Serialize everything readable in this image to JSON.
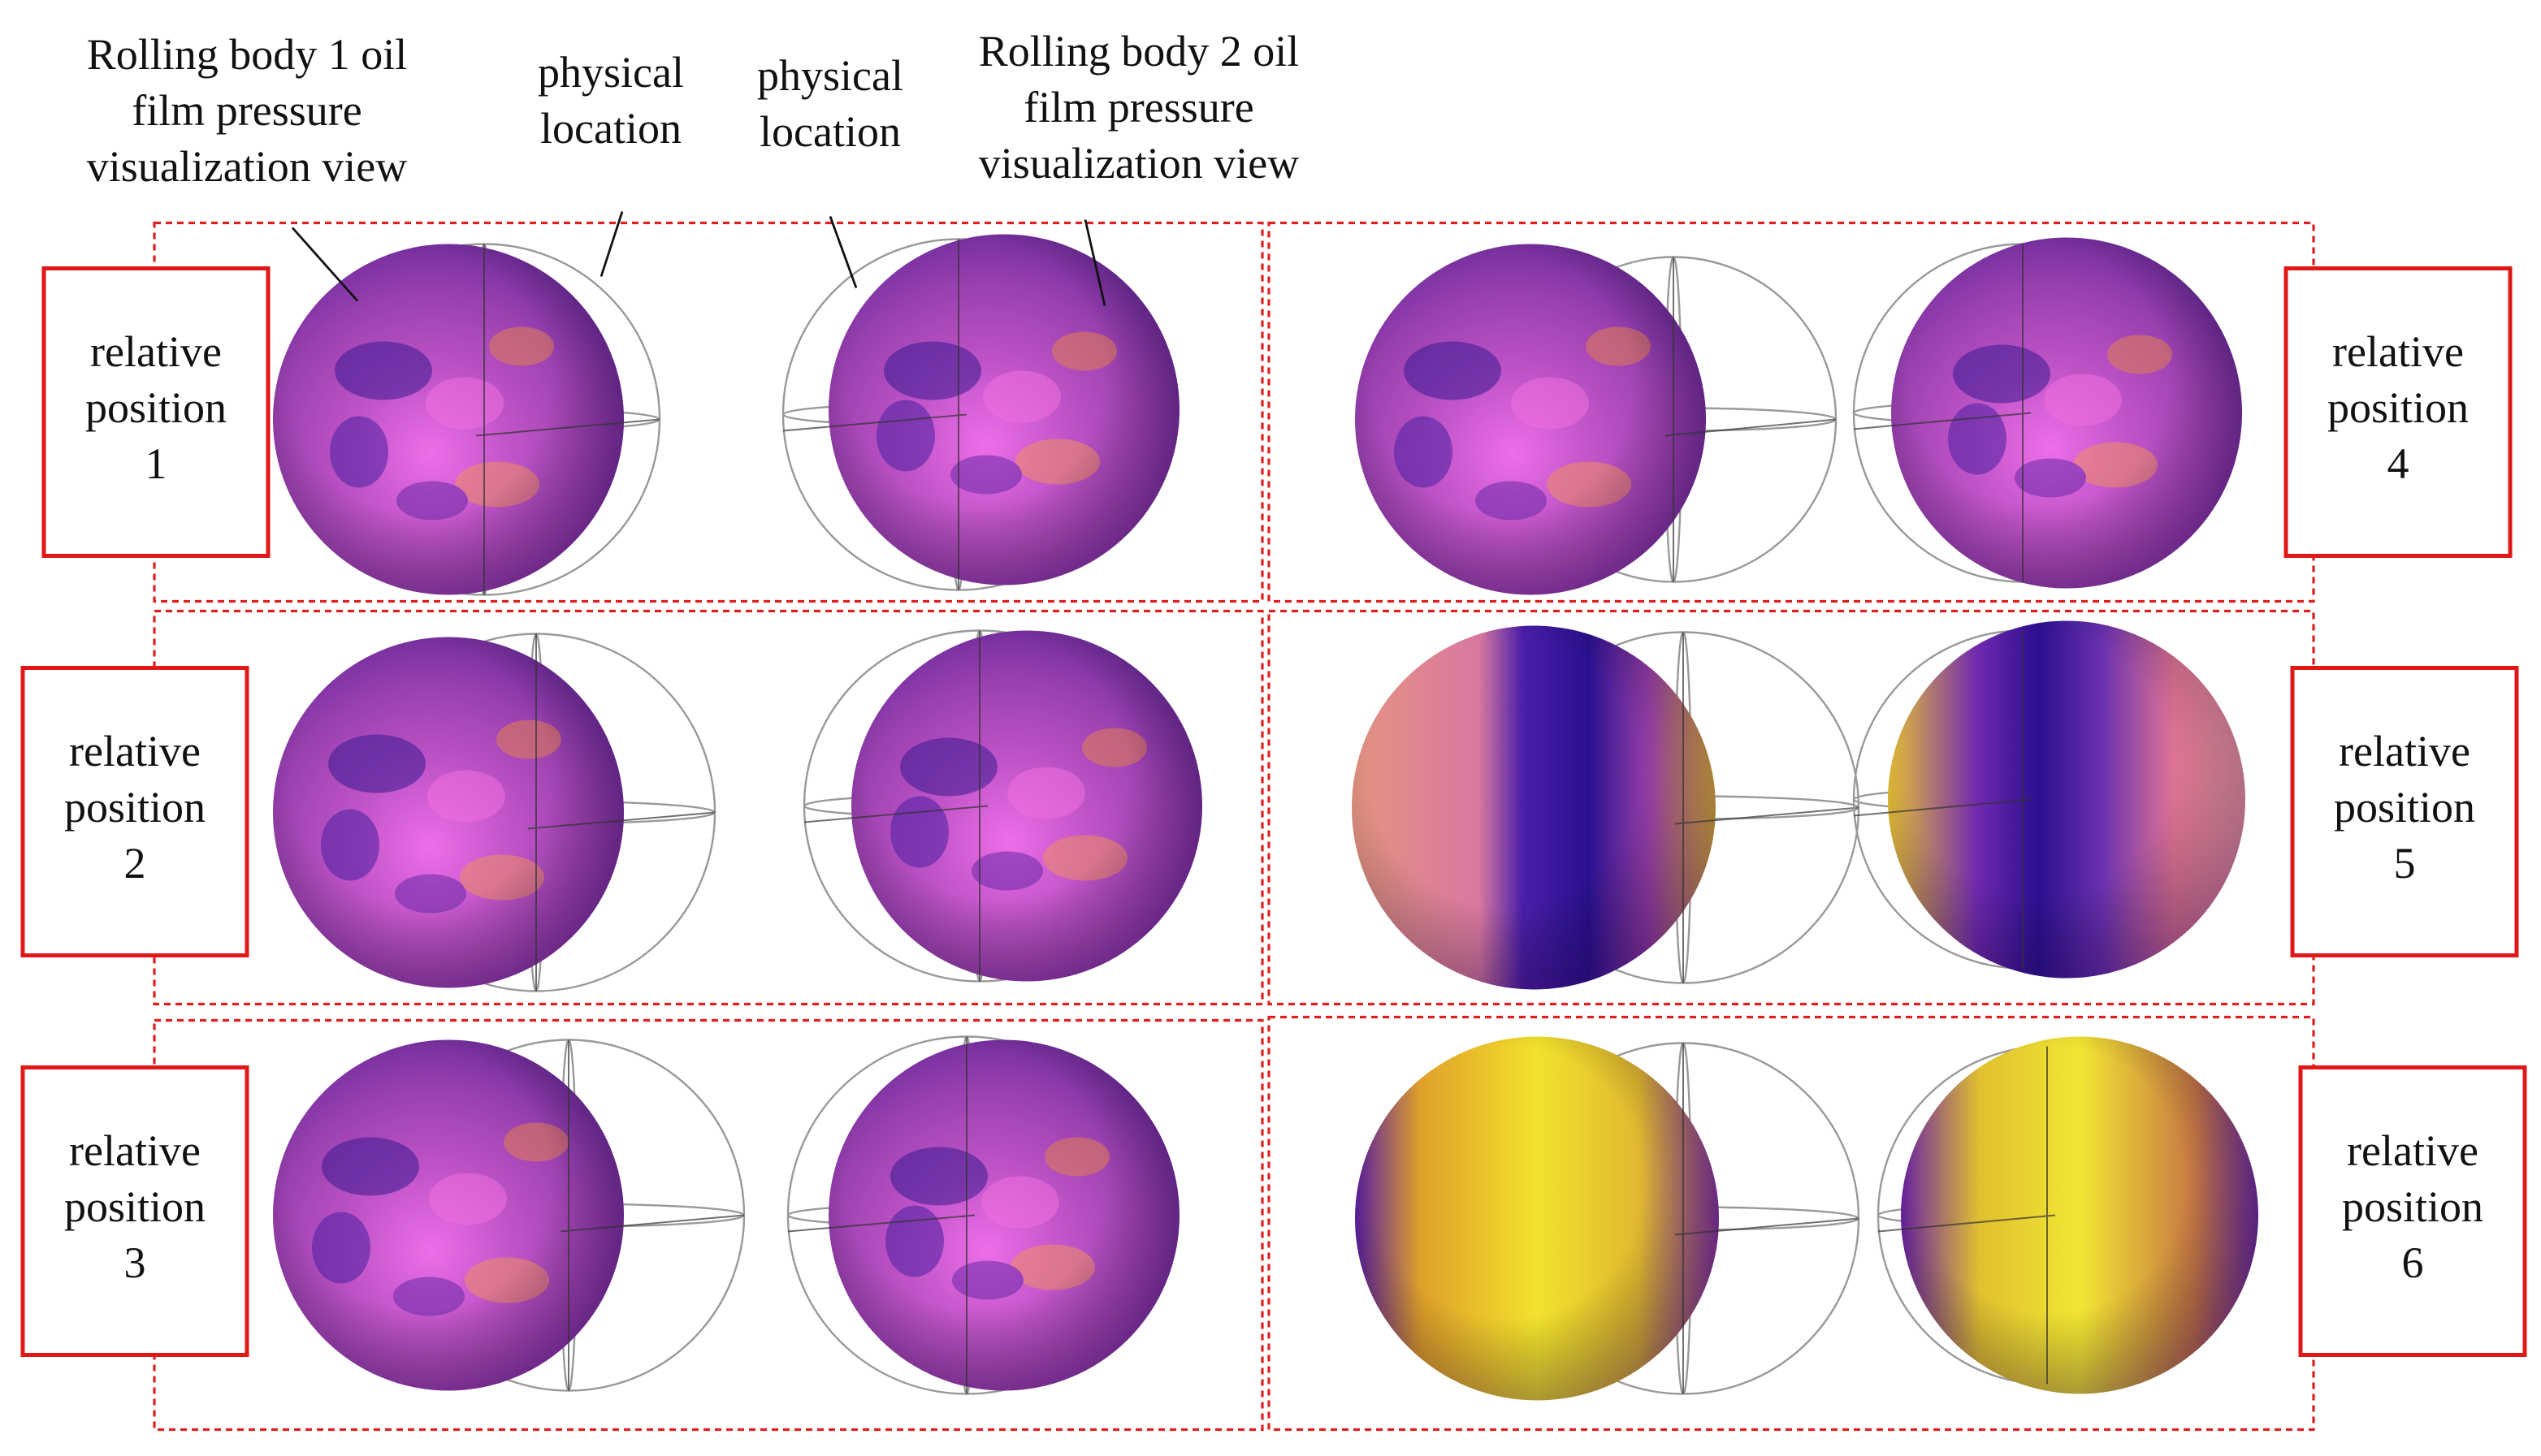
{
  "annotations": [
    {
      "lines": [
        "Rolling body 1 oil",
        "film pressure",
        "visualization view"
      ]
    },
    {
      "lines": [
        "physical",
        "location"
      ]
    },
    {
      "lines": [
        "physical",
        "location"
      ]
    },
    {
      "lines": [
        "Rolling body 2 oil",
        "film pressure",
        "visualization view"
      ]
    }
  ],
  "positions": [
    {
      "lines": [
        "relative",
        "position",
        "1"
      ]
    },
    {
      "lines": [
        "relative",
        "position",
        "2"
      ]
    },
    {
      "lines": [
        "relative",
        "position",
        "3"
      ]
    },
    {
      "lines": [
        "relative",
        "position",
        "4"
      ]
    },
    {
      "lines": [
        "relative",
        "position",
        "5"
      ]
    },
    {
      "lines": [
        "relative",
        "position",
        "6"
      ]
    }
  ]
}
